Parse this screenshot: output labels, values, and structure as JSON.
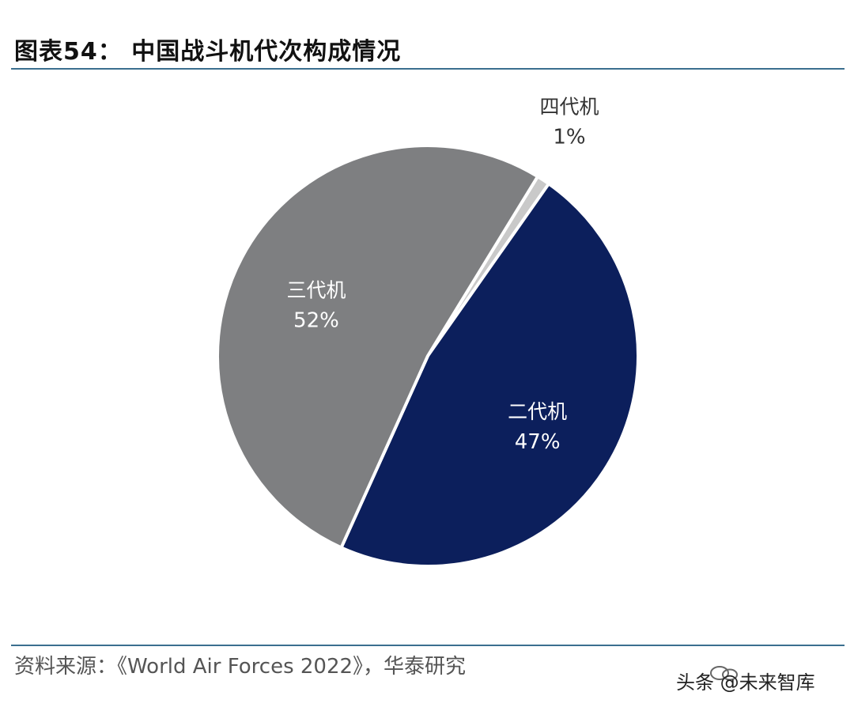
{
  "header": {
    "title": "图表54：  中国战斗机代次构成情况"
  },
  "footer": {
    "source": "资料来源：《World Air Forces 2022》，华泰研究",
    "watermark": "头条 @未来智库"
  },
  "colors": {
    "rule": "#3b6f8f",
    "text_dark": "#333333",
    "text_light": "#ffffff"
  },
  "chart_data": {
    "type": "pie",
    "title": "",
    "slices": [
      {
        "label": "四代机",
        "value": 1,
        "value_label": "1%",
        "color": "#c9c9c9",
        "label_color": "#333333",
        "label_outside": true
      },
      {
        "label": "二代机",
        "value": 47,
        "value_label": "47%",
        "color": "#0c1f5c",
        "label_color": "#ffffff",
        "label_outside": false
      },
      {
        "label": "三代机",
        "value": 52,
        "value_label": "52%",
        "color": "#7e7f81",
        "label_color": "#ffffff",
        "label_outside": false
      }
    ],
    "legend": false
  }
}
